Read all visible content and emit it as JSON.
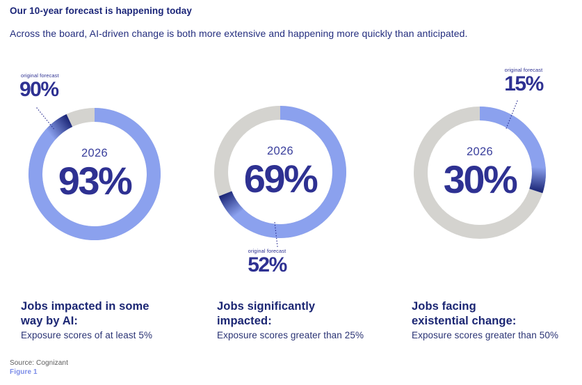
{
  "header": {
    "title": "Our 10-year forecast is happening today",
    "subtitle": "Across the board, AI-driven change is both more extensive and happening more quickly than anticipated."
  },
  "colors": {
    "arc_blue": "#8ba1ee",
    "cap_navy": "#1d2878",
    "ring_gray": "#d4d3cf",
    "dark_navy": "#2e3192",
    "heading_navy": "#1b2673",
    "source_gray": "#5b5b5b",
    "figure_blue": "#7b8ce8"
  },
  "chart_data": [
    {
      "type": "donut",
      "center_year": "2026",
      "value_2026": 93,
      "value_label": "93%",
      "original_forecast": 90,
      "original_forecast_label": "90%",
      "callout_caption": "original forecast",
      "callout_position": "top-left",
      "segments": {
        "achieved_pct": 93,
        "remainder_pct": 7
      },
      "title_lines": [
        "Jobs impacted in some",
        "way by AI:"
      ],
      "subtitle": "Exposure scores of at least 5%"
    },
    {
      "type": "donut",
      "center_year": "2026",
      "value_2026": 69,
      "value_label": "69%",
      "original_forecast": 52,
      "original_forecast_label": "52%",
      "callout_caption": "original forecast",
      "callout_position": "bottom",
      "segments": {
        "achieved_pct": 69,
        "remainder_pct": 31
      },
      "title_lines": [
        "Jobs significantly",
        "impacted:"
      ],
      "subtitle": "Exposure scores greater than 25%"
    },
    {
      "type": "donut",
      "center_year": "2026",
      "value_2026": 30,
      "value_label": "30%",
      "original_forecast": 15,
      "original_forecast_label": "15%",
      "callout_caption": "original forecast",
      "callout_position": "top-right",
      "segments": {
        "achieved_pct": 30,
        "remainder_pct": 70
      },
      "title_lines": [
        "Jobs facing",
        "existential change:"
      ],
      "subtitle": "Exposure scores greater than 50%"
    }
  ],
  "footer": {
    "source": "Source: Cognizant",
    "figure": "Figure 1"
  }
}
